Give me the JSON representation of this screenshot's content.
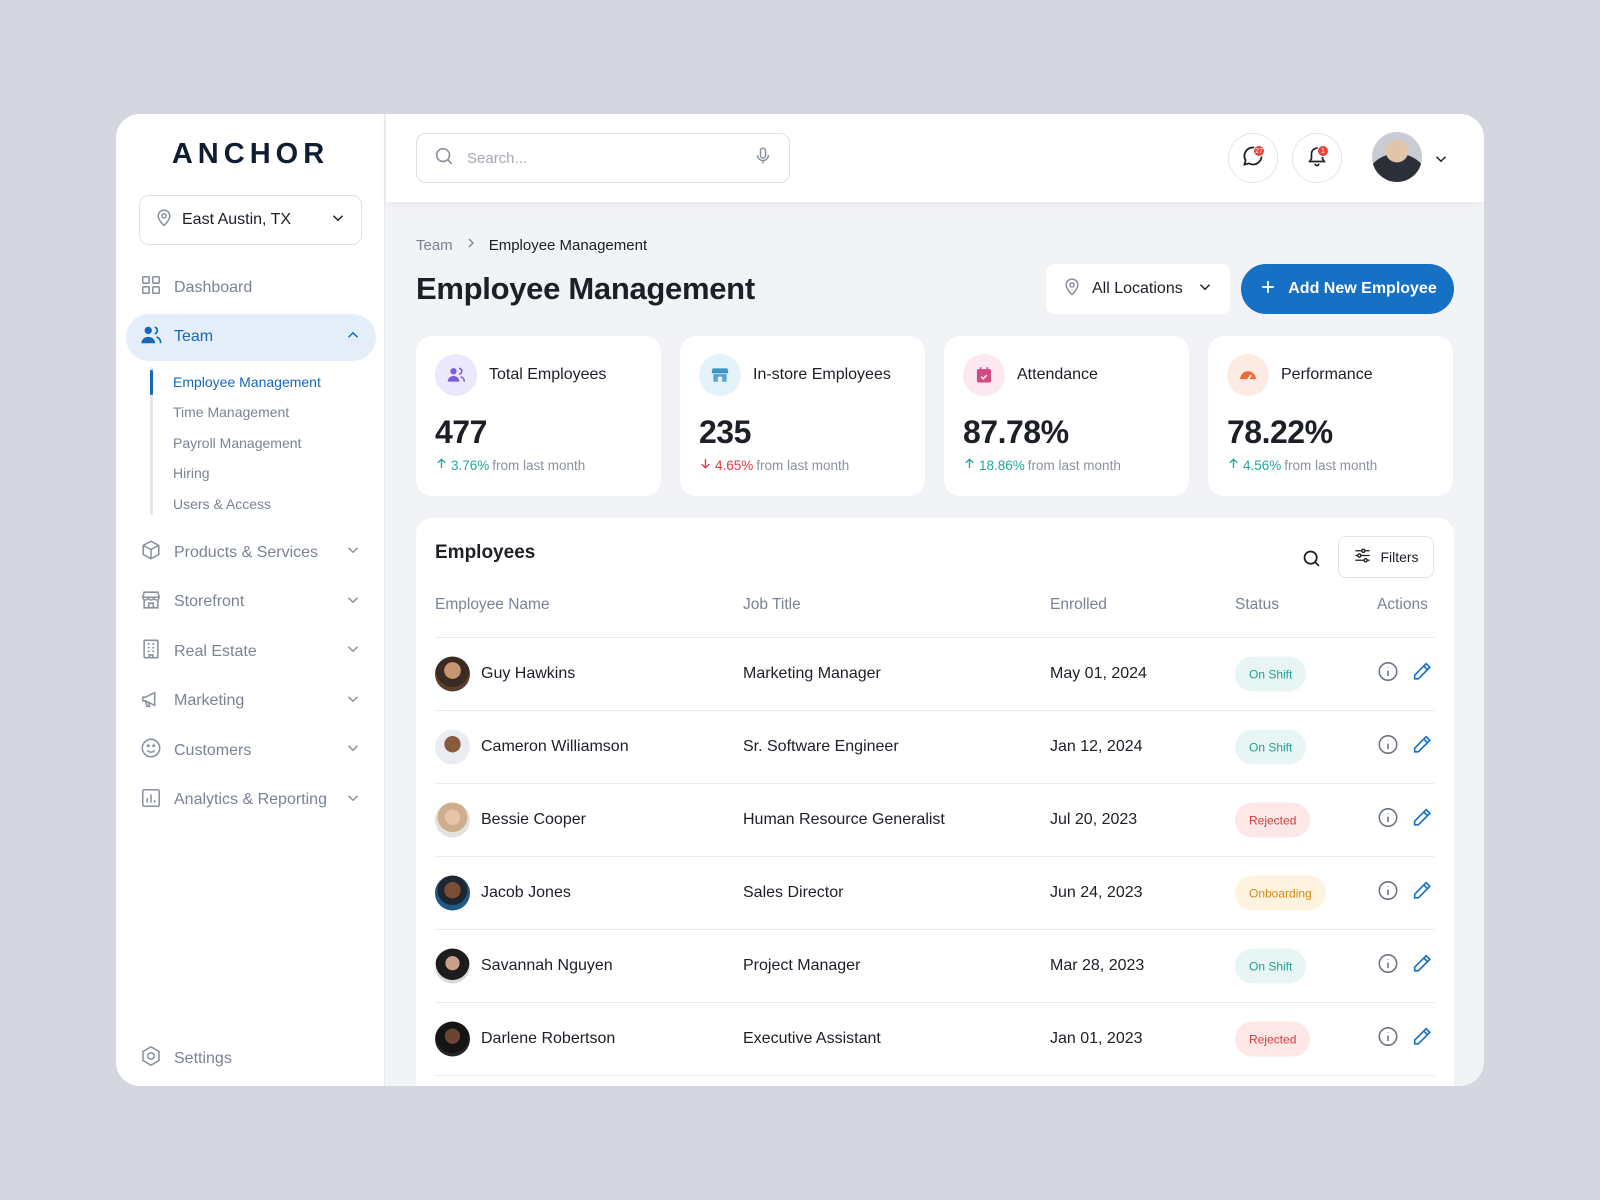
{
  "brand": "ANCHOR",
  "sidebar": {
    "location": "East Austin, TX",
    "items": [
      {
        "label": "Dashboard",
        "icon": "grid-icon",
        "active": false
      },
      {
        "label": "Team",
        "icon": "users-icon",
        "active": true
      },
      {
        "label": "Products & Services",
        "icon": "box-icon"
      },
      {
        "label": "Storefront",
        "icon": "store-icon"
      },
      {
        "label": "Real Estate",
        "icon": "building-icon"
      },
      {
        "label": "Marketing",
        "icon": "megaphone-icon"
      },
      {
        "label": "Customers",
        "icon": "smile-icon"
      },
      {
        "label": "Analytics & Reporting",
        "icon": "chart-icon"
      }
    ],
    "team_sub": [
      "Employee Management",
      "Time Management",
      "Payroll Management",
      "Hiring",
      "Users & Access"
    ],
    "settings": "Settings"
  },
  "topbar": {
    "search_placeholder": "Search...",
    "messages_badge": "27",
    "notifications_badge": "1"
  },
  "breadcrumb": {
    "parent": "Team",
    "current": "Employee Management"
  },
  "page_title": "Employee Management",
  "location_filter": "All Locations",
  "add_button": "Add New Employee",
  "stats": [
    {
      "label": "Total Employees",
      "value": "477",
      "delta": "3.76%",
      "direction": "up",
      "suffix": "from last month",
      "icon": "users-icon",
      "icon_bg": "#ece8fb",
      "icon_color": "#7b5bd6"
    },
    {
      "label": "In-store Employees",
      "value": "235",
      "delta": "4.65%",
      "direction": "down",
      "suffix": "from last month",
      "icon": "store-icon",
      "icon_bg": "#e4f3f9",
      "icon_color": "#3d95c4"
    },
    {
      "label": "Attendance",
      "value": "87.78%",
      "delta": "18.86%",
      "direction": "up",
      "suffix": "from last month",
      "icon": "calendar-icon",
      "icon_bg": "#fbe7f0",
      "icon_color": "#d04a86"
    },
    {
      "label": "Performance",
      "value": "78.22%",
      "delta": "4.56%",
      "direction": "up",
      "suffix": "from last month",
      "icon": "gauge-icon",
      "icon_bg": "#fdebe3",
      "icon_color": "#ec6a3a"
    }
  ],
  "table": {
    "title": "Employees",
    "filters_label": "Filters",
    "columns": [
      "Employee Name",
      "Job Title",
      "Enrolled",
      "Status",
      "Actions"
    ],
    "rows": [
      {
        "name": "Guy Hawkins",
        "job": "Marketing Manager",
        "enrolled": "May 01, 2024",
        "status": "On Shift"
      },
      {
        "name": "Cameron Williamson",
        "job": "Sr. Software Engineer",
        "enrolled": "Jan 12, 2024",
        "status": "On Shift"
      },
      {
        "name": "Bessie Cooper",
        "job": "Human Resource Generalist",
        "enrolled": "Jul 20, 2023",
        "status": "Rejected"
      },
      {
        "name": "Jacob Jones",
        "job": "Sales Director",
        "enrolled": "Jun 24, 2023",
        "status": "Onboarding"
      },
      {
        "name": "Savannah Nguyen",
        "job": "Project Manager",
        "enrolled": "Mar 28, 2023",
        "status": "On Shift"
      },
      {
        "name": "Darlene Robertson",
        "job": "Executive Assistant",
        "enrolled": "Jan 01, 2023",
        "status": "Rejected"
      }
    ]
  },
  "colors": {
    "primary": "#1670c4",
    "on_shift": "#249e90",
    "rejected": "#d23c3c",
    "onboarding": "#d08a12"
  }
}
